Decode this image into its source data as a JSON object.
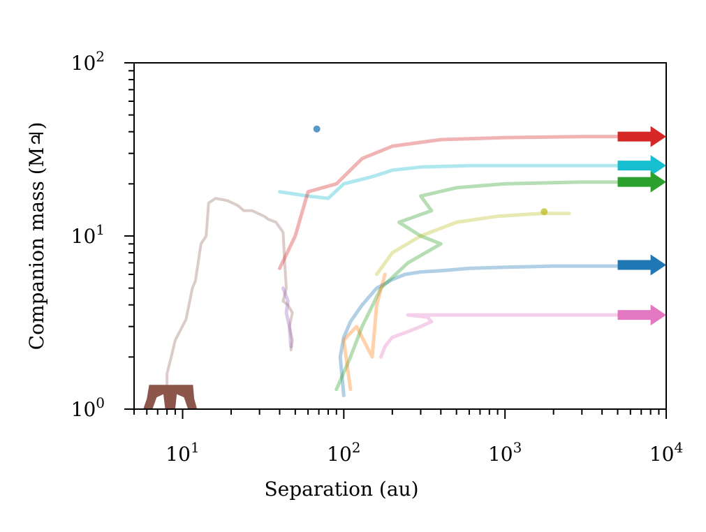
{
  "chart_data": {
    "type": "line",
    "title": "",
    "xlabel": "Separation (au)",
    "ylabel": "Companion mass (M♃)",
    "xscale": "log",
    "yscale": "log",
    "xlim": [
      5,
      10000
    ],
    "ylim": [
      1,
      100
    ],
    "x_ticks": [
      {
        "value": 10,
        "base": "10",
        "exp": "1"
      },
      {
        "value": 100,
        "base": "10",
        "exp": "2"
      },
      {
        "value": 1000,
        "base": "10",
        "exp": "3"
      },
      {
        "value": 10000,
        "base": "10",
        "exp": "4"
      }
    ],
    "y_ticks": [
      {
        "value": 1,
        "base": "10",
        "exp": "0"
      },
      {
        "value": 10,
        "base": "10",
        "exp": "1"
      },
      {
        "value": 100,
        "base": "10",
        "exp": "2"
      }
    ],
    "grid": false,
    "legend": "none",
    "series": [
      {
        "name": "brown",
        "color": "#8c564b",
        "x": [
          8,
          8,
          8.5,
          9,
          10.5,
          11.5,
          12,
          13,
          14,
          14.5,
          16,
          19,
          22,
          24,
          27,
          32,
          34,
          38,
          42,
          43,
          44,
          42,
          45,
          48,
          46,
          48,
          47
        ],
        "y": [
          1.0,
          1.6,
          2.0,
          2.5,
          3.3,
          5.0,
          5.5,
          9.0,
          10.0,
          15.5,
          16.5,
          16.0,
          15.0,
          14.0,
          14.0,
          13.0,
          12.5,
          12.0,
          10.5,
          7.0,
          5.0,
          4.2,
          4.0,
          3.6,
          3.0,
          2.5,
          2.2
        ]
      },
      {
        "name": "blue",
        "color": "#1f77b4",
        "x": [
          100,
          95,
          100,
          110,
          130,
          160,
          200,
          240,
          300,
          400,
          600,
          1000,
          2000,
          5000,
          9000
        ],
        "y": [
          1.2,
          2.0,
          2.6,
          3.2,
          4.0,
          5.0,
          5.6,
          6.0,
          6.2,
          6.3,
          6.5,
          6.6,
          6.7,
          6.7,
          6.8
        ]
      },
      {
        "name": "pink",
        "color": "#e377c2",
        "x": [
          170,
          180,
          200,
          250,
          300,
          350,
          330,
          250,
          300,
          600,
          1500,
          5000,
          9000
        ],
        "y": [
          2.0,
          2.3,
          2.6,
          2.8,
          3.0,
          3.2,
          3.4,
          3.5,
          3.5,
          3.5,
          3.5,
          3.5,
          3.5
        ]
      },
      {
        "name": "green",
        "color": "#2ca02c",
        "x": [
          90,
          110,
          130,
          170,
          250,
          400,
          300,
          220,
          350,
          300,
          500,
          1000,
          3000,
          9000
        ],
        "y": [
          1.3,
          2.0,
          3.0,
          5.0,
          7.0,
          9.0,
          10.0,
          12.0,
          14.0,
          17.0,
          19.0,
          20.0,
          20.5,
          20.5
        ]
      },
      {
        "name": "cyan",
        "color": "#17becf",
        "x": [
          40,
          60,
          80,
          100,
          150,
          200,
          300,
          600,
          1500,
          5000,
          9000
        ],
        "y": [
          18.0,
          17.0,
          16.5,
          20.0,
          22.0,
          24.0,
          25.0,
          25.5,
          25.5,
          25.5,
          25.5
        ]
      },
      {
        "name": "olive",
        "color": "#bcbd22",
        "x": [
          160,
          200,
          300,
          500,
          900,
          1700,
          2500
        ],
        "y": [
          6.0,
          8.0,
          10.0,
          12.0,
          13.0,
          13.5,
          13.5
        ]
      },
      {
        "name": "red",
        "color": "#d62728",
        "x": [
          40,
          50,
          60,
          90,
          130,
          200,
          400,
          1000,
          3000,
          9000
        ],
        "y": [
          6.5,
          10.0,
          18.0,
          20.0,
          28.0,
          33.0,
          36.0,
          37.0,
          37.5,
          37.5
        ]
      },
      {
        "name": "orange",
        "color": "#ff7f0e",
        "x": [
          110,
          100,
          120,
          150,
          160,
          180
        ],
        "y": [
          1.3,
          2.5,
          3.0,
          2.0,
          4.0,
          6.0
        ]
      },
      {
        "name": "purple",
        "color": "#9467bd",
        "x": [
          47,
          46,
          44,
          45,
          42
        ],
        "y": [
          2.3,
          3.0,
          3.6,
          4.2,
          5.0
        ]
      }
    ],
    "markers": [
      {
        "color": "#1f77b4",
        "x": 68,
        "y": 41.5
      },
      {
        "color": "#bcbd22",
        "x": 1750,
        "y": 13.8
      }
    ],
    "arrows": [
      {
        "color": "#d62728",
        "y": 37.5
      },
      {
        "color": "#17becf",
        "y": 25.5
      },
      {
        "color": "#2ca02c",
        "y": 20.5
      },
      {
        "color": "#1f77b4",
        "y": 6.8
      },
      {
        "color": "#e377c2",
        "y": 3.5
      }
    ]
  }
}
